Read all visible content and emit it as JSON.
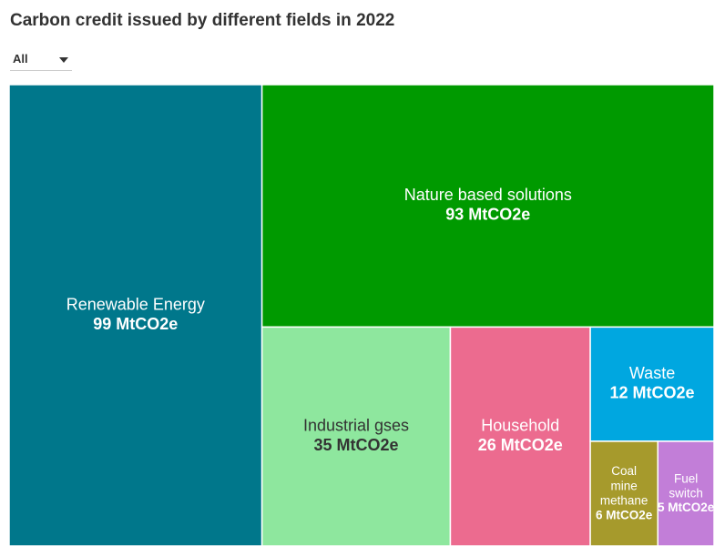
{
  "chart_data": {
    "type": "treemap",
    "title": "Carbon credit issued by different fields in 2022",
    "filter": "All",
    "categories": [
      "Renewable Energy",
      "Nature based solutions",
      "Industrial gses",
      "Household",
      "Waste",
      "Coal mine methane",
      "Fuel switch"
    ],
    "values": [
      99,
      93,
      35,
      26,
      12,
      6,
      5
    ],
    "value_labels": [
      "99 MtCO2e",
      "93 MtCO2e",
      "35 MtCO2e",
      "26 MtCO2e",
      "12 MtCO2e",
      "6 MtCO2e",
      "5 MtCO2e"
    ],
    "colors": [
      "#00778b",
      "#009a00",
      "#8ee79e",
      "#ec6b8f",
      "#00a7e0",
      "#a69a2c",
      "#c27ed8"
    ]
  }
}
